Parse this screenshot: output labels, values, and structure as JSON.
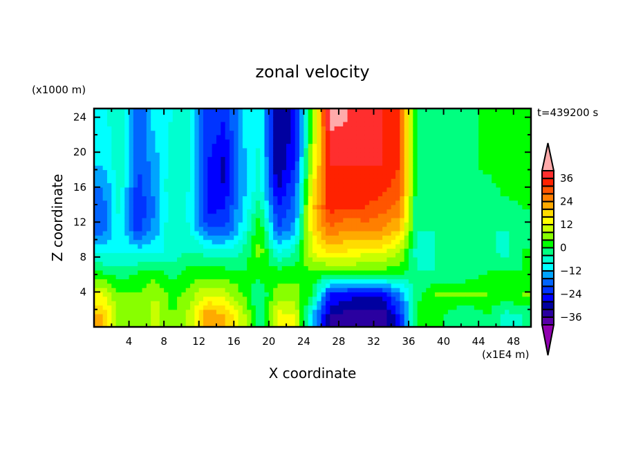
{
  "chart_data": {
    "type": "heatmap",
    "title": "zonal velocity",
    "xlabel": "X coordinate",
    "ylabel": "Z coordinate",
    "x_unit": "(x1E4 m)",
    "y_unit": "(x1000 m)",
    "time_label": "t=439200 s",
    "xlim": [
      0,
      50
    ],
    "ylim": [
      0,
      25
    ],
    "x_ticks": [
      "4",
      "8",
      "12",
      "16",
      "20",
      "24",
      "28",
      "32",
      "36",
      "40",
      "44",
      "48"
    ],
    "y_ticks": [
      "4",
      "8",
      "12",
      "16",
      "20",
      "24"
    ],
    "x_cell_centers": [
      1,
      3,
      5,
      7,
      9,
      11,
      13,
      15,
      17,
      19,
      21,
      23,
      25,
      27,
      29,
      31,
      33,
      35,
      37,
      39,
      41,
      43,
      45,
      47,
      49
    ],
    "z_cell_centers": [
      1.25,
      3.75,
      6.25,
      8.75,
      11.25,
      13.75,
      16.25,
      18.75,
      21.25,
      23.75
    ],
    "values_by_column": [
      [
        20,
        12,
        0,
        -10,
        -18,
        -18,
        -16,
        -12,
        -10,
        -10
      ],
      [
        6,
        4,
        -2,
        -8,
        -8,
        -6,
        -6,
        -4,
        -6,
        -4
      ],
      [
        4,
        4,
        0,
        -10,
        -22,
        -24,
        -22,
        -20,
        -20,
        -20
      ],
      [
        10,
        8,
        2,
        -10,
        -14,
        -16,
        -14,
        -14,
        -12,
        -10
      ],
      [
        4,
        2,
        -2,
        -6,
        -4,
        -4,
        -4,
        -6,
        -6,
        -8
      ],
      [
        10,
        6,
        2,
        -4,
        -8,
        -10,
        -8,
        -8,
        -8,
        -8
      ],
      [
        24,
        12,
        2,
        -6,
        -20,
        -26,
        -26,
        -24,
        -22,
        -22
      ],
      [
        20,
        10,
        2,
        -8,
        -20,
        -24,
        -28,
        -30,
        -26,
        -24
      ],
      [
        10,
        4,
        0,
        -4,
        -10,
        -12,
        -14,
        -14,
        -12,
        -12
      ],
      [
        -4,
        -4,
        2,
        6,
        4,
        -2,
        -6,
        -6,
        -8,
        -8
      ],
      [
        14,
        6,
        2,
        -10,
        -20,
        -24,
        -30,
        -32,
        -32,
        -32
      ],
      [
        12,
        6,
        2,
        -4,
        -14,
        -18,
        -20,
        -24,
        -26,
        -26
      ],
      [
        -12,
        0,
        4,
        12,
        16,
        18,
        14,
        10,
        8,
        6
      ],
      [
        -32,
        -24,
        2,
        18,
        28,
        34,
        36,
        36,
        38,
        42
      ],
      [
        -34,
        -26,
        4,
        16,
        24,
        32,
        34,
        36,
        38,
        40
      ],
      [
        -34,
        -28,
        2,
        14,
        26,
        32,
        34,
        36,
        36,
        36
      ],
      [
        -36,
        -26,
        2,
        14,
        24,
        30,
        34,
        36,
        36,
        36
      ],
      [
        -24,
        -16,
        2,
        8,
        20,
        26,
        30,
        32,
        32,
        32
      ],
      [
        2,
        -2,
        -4,
        -6,
        -4,
        -4,
        -4,
        -2,
        -2,
        -2
      ],
      [
        2,
        4,
        -4,
        -4,
        -4,
        -2,
        -2,
        -2,
        -2,
        -2
      ],
      [
        -2,
        4,
        -4,
        -4,
        -4,
        -4,
        -2,
        -2,
        -2,
        -2
      ],
      [
        -4,
        4,
        -2,
        -4,
        -4,
        -4,
        -2,
        -2,
        -2,
        -2
      ],
      [
        0,
        4,
        0,
        -2,
        -4,
        -4,
        -2,
        2,
        2,
        2
      ],
      [
        -6,
        2,
        0,
        -6,
        -4,
        -2,
        2,
        2,
        0,
        0
      ],
      [
        -4,
        4,
        0,
        0,
        -2,
        0,
        2,
        2,
        2,
        2
      ]
    ],
    "colorbar": {
      "levels_min": -40,
      "levels_max": 40,
      "level_step": 4,
      "tick_labels": [
        "36",
        "24",
        "12",
        "0",
        "-12",
        "-24",
        "-36"
      ],
      "tick_values": [
        36,
        24,
        12,
        0,
        -12,
        -24,
        -36
      ],
      "colors_low_to_high": [
        "#5a00a8",
        "#2a00a0",
        "#0000a0",
        "#0000ff",
        "#0034ff",
        "#0064ff",
        "#00a4ff",
        "#00ffff",
        "#00ffd0",
        "#00ff80",
        "#00ff00",
        "#88ff00",
        "#c8ff00",
        "#ffff00",
        "#ffdc00",
        "#ffaa00",
        "#ff7f00",
        "#ff5500",
        "#ff2200",
        "#ff2e2e"
      ],
      "under_color": "#9000b0",
      "over_color": "#ffaaaa"
    }
  }
}
